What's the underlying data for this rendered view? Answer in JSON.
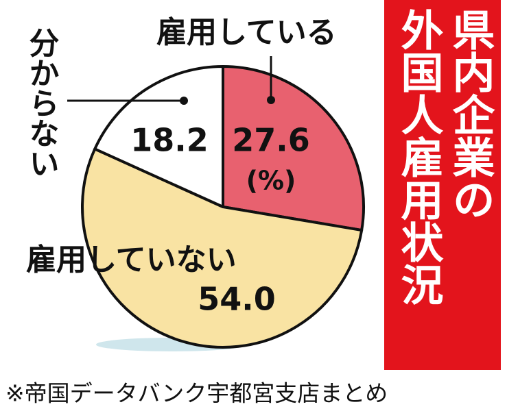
{
  "chart_data": {
    "type": "pie",
    "title": [
      "県内企業の",
      "外国人雇用状況"
    ],
    "categories": [
      "雇用している",
      "雇用していない",
      "分からない"
    ],
    "values": [
      27.6,
      54.0,
      18.2
    ],
    "value_labels": [
      "27.6",
      "54.0",
      "18.2"
    ],
    "colors": [
      "#e8616f",
      "#f9e3a3",
      "#ffffff"
    ],
    "unit": "(%)",
    "source": "※帝国データバンク宇都宮支店まとめ"
  }
}
